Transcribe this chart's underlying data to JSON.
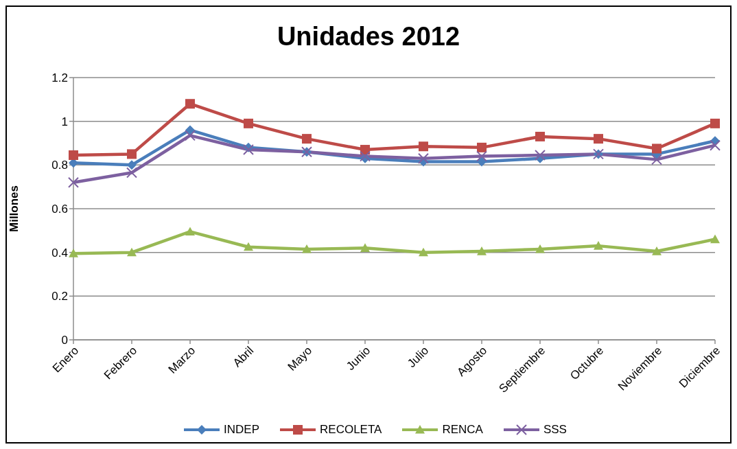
{
  "chart_data": {
    "type": "line",
    "title": "Unidades 2012",
    "ylabel": "Millones",
    "categories": [
      "Enero",
      "Febrero",
      "Marzo",
      "Abril",
      "Mayo",
      "Junio",
      "Julio",
      "Agosto",
      "Septiembre",
      "Octubre",
      "Noviembre",
      "Diciembre"
    ],
    "series": [
      {
        "name": "INDEP",
        "color": "#4a7ebb",
        "marker": "diamond",
        "values": [
          0.81,
          0.8,
          0.96,
          0.88,
          0.86,
          0.83,
          0.815,
          0.815,
          0.83,
          0.85,
          0.85,
          0.91
        ]
      },
      {
        "name": "RECOLETA",
        "color": "#be4b48",
        "marker": "square",
        "values": [
          0.845,
          0.85,
          1.08,
          0.99,
          0.92,
          0.87,
          0.885,
          0.88,
          0.93,
          0.92,
          0.875,
          0.99
        ]
      },
      {
        "name": "RENCA",
        "color": "#98b954",
        "marker": "triangle",
        "values": [
          0.395,
          0.4,
          0.495,
          0.425,
          0.415,
          0.42,
          0.4,
          0.405,
          0.415,
          0.43,
          0.405,
          0.46
        ]
      },
      {
        "name": "SSS",
        "color": "#7d60a0",
        "marker": "cross",
        "values": [
          0.72,
          0.765,
          0.935,
          0.87,
          0.86,
          0.84,
          0.83,
          0.84,
          0.845,
          0.85,
          0.825,
          0.89
        ]
      }
    ],
    "ylim": [
      0,
      1.2
    ],
    "yticks": [
      0,
      0.2,
      0.4,
      0.6,
      0.8,
      1,
      1.2
    ],
    "grid": "y",
    "legend": "bottom"
  }
}
